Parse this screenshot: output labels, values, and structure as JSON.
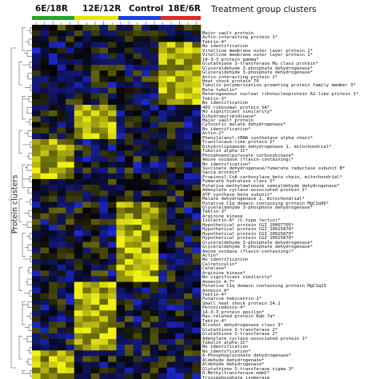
{
  "chart_data": {
    "type": "heatmap",
    "title": "",
    "xlabel": "",
    "ylabel": "Protein clusters",
    "legend_title": "Treatment group clusters",
    "groups": [
      {
        "name": "6E/18R",
        "color": "#22a822",
        "columns": 5
      },
      {
        "name": "12E/12R",
        "color": "#e6e600",
        "columns": 5
      },
      {
        "name": "Control",
        "color": "#1f3fe0",
        "columns": 5
      },
      {
        "name": "18E/6R",
        "color": "#e02a2a",
        "columns": 5
      }
    ],
    "colors": {
      "low": "#1e2cf0",
      "mid": "#050505",
      "high": "#f0f014"
    },
    "proteins": [
      "Major vault protein",
      "Actin-interacting protein 1*",
      "Tektin-4*",
      "No identification",
      "Vitelline membrane outer layer protein 1*",
      "Vitelline membrane outer layer protein 1*",
      "14-3-3 protein gamma*",
      "Glutathione S-transferase Mu class protein*",
      "Glyceraldehyde 3-phosphate dehydrogenase*",
      "Glyceraldehyde 3-phosphate dehydrogenase*",
      "Actin-interacting protein 1*",
      "Heat shock protein 70",
      "Tubulin polymerization-promoting protein family member 3*",
      "Beta-tubulin*",
      "Heterogeneous nuclear ribonucleoprotein A2-like protein 1*",
      "Tektin-3*",
      "No identification",
      "40S ribosomal protein SA*",
      "No significant similarity*",
      "Dihydropyrimidinase*",
      "Major vault protein",
      "Cytosolic malate dehydrogenase*",
      "No identification*",
      "Actin-2*",
      "Phenylalanyl-tRNA synthetase alpha chain*",
      "Translocase-like protein 2*",
      "Dihydrolipoamide dehydrogenase 1, mitochondrial*",
      "Tubulin alpha-1C*",
      "Phosphoenolpyruvate carboxykinase*",
      "Amine oxidase (flavin-containing)*",
      "No identification*",
      "Succinate dehydrogenase/fumarate reductase subunit B*",
      "Sacca protein*",
      "Propionyl-CoA carboxylase beta chain, mitochondrial*",
      "Fumarate hydratase class I*",
      "Putative methylmalonate semialdehyde dehydrogenase*",
      "Adenylate cyclase-associated protein 1*",
      "ATP synthase beta subunit*",
      "Malate dehydrogenase 2, mitochondrial*",
      "Putative C1q domain containing protein MgC1q96*",
      "Glyceraldehyde 3-phosphate dehydrogenase*",
      "Tektin-3*",
      "Arginine kinase",
      "Isolectin-A* (C-type lectin)*",
      "Hypothetical protein CGI_10007705*",
      "Hypothetical protein CGI_10025870*",
      "Hypothetical protein CGI_10025870*",
      "Hypothetical protein CGI_10025870*",
      "Glyceraldehyde 3-phosphate dehydrogenase*",
      "Glyceraldehyde 3-phosphate dehydrogenase*",
      "Amine oxidase (flavin-containing)*",
      "Actin*",
      "No identification",
      "Calreticulin*",
      "Catalase*",
      "Arginine kinase*",
      "No significant similarity*",
      "Annexin A-7*",
      "Putative C1q domain containing protein MgC1q23",
      "Annexin A*",
      "Tektin-4*",
      "Putative hemicentin-1*",
      "Small heat shock protein 24.1",
      "Peroxiredoxin-4*",
      "14-3-3 protein epsilon*",
      "Ras-related protein Rab-7a*",
      "Tektin-4*",
      "Alcohol dehydrogenase class 3*",
      "Glutathione S-transferase 2*",
      "Glutathione S-transferase 2*",
      "Adenylate cyclase-associated protein 1*",
      "Tubulin alpha-1C*",
      "No identification",
      "No identification*",
      "6-Phosphogluconate dehydrogenase*",
      "Aldehyde dehydrogenase*",
      "Aldehyde dehydrogenase*",
      "Glutathione S-transferase sigma 3*",
      "O-Methyltransferase mdmC*",
      "Triosephosphate isomerase"
    ]
  }
}
